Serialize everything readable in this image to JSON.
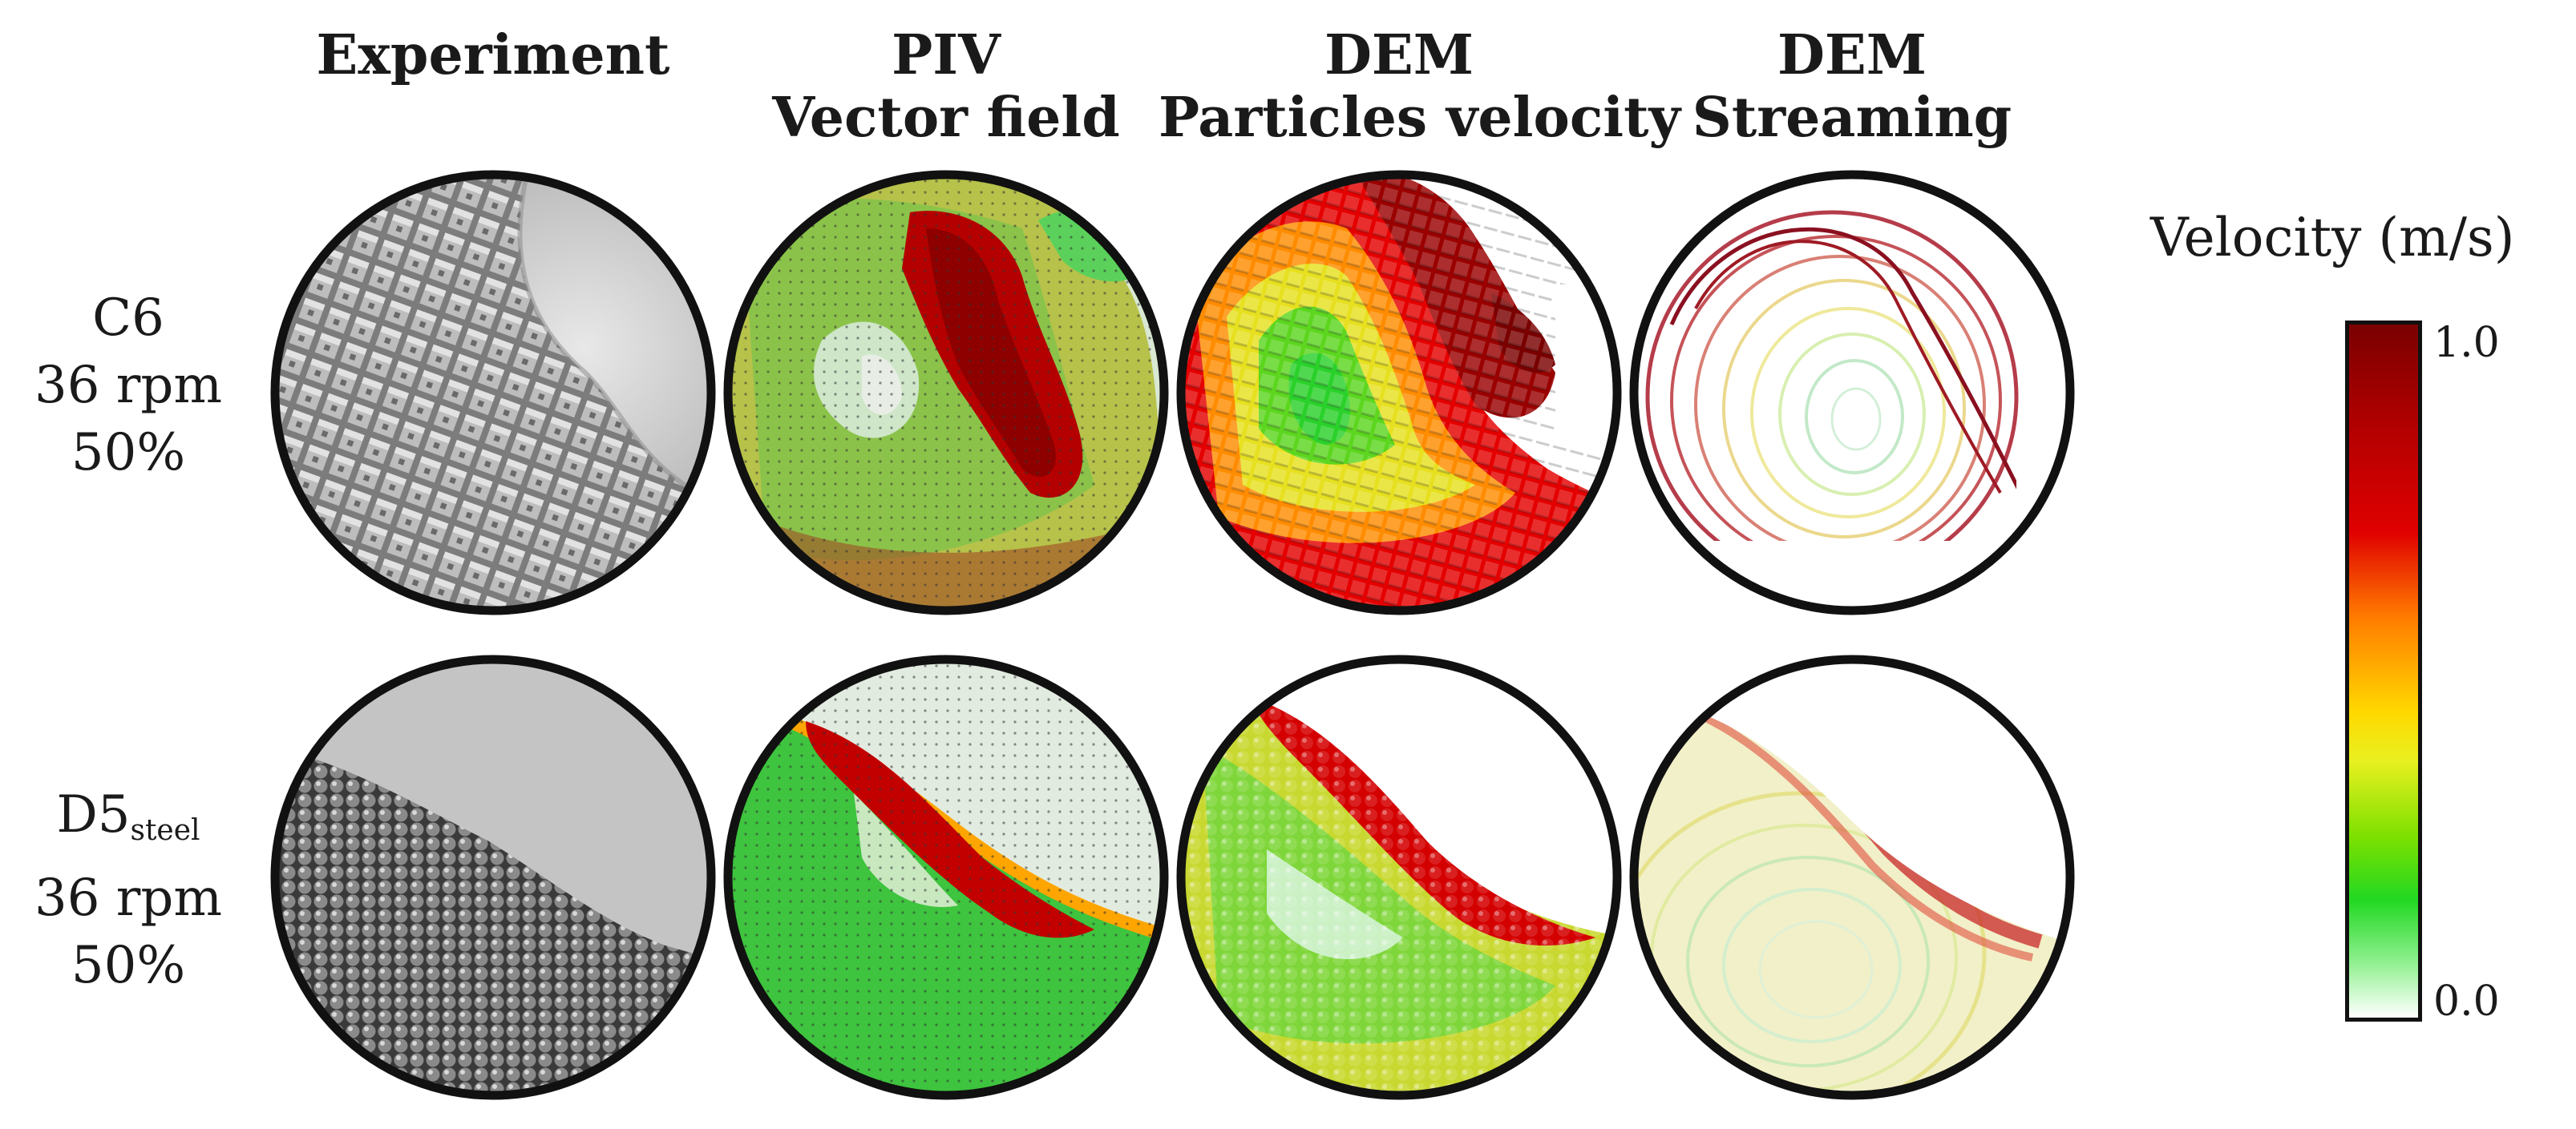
{
  "columns": [
    {
      "line1": "Experiment",
      "line2": ""
    },
    {
      "line1": "PIV",
      "line2": "Vector field"
    },
    {
      "line1": "DEM",
      "line2": "Particles velocity"
    },
    {
      "line1": "DEM",
      "line2": "Streaming"
    }
  ],
  "rows": [
    {
      "label1": "C6",
      "label1_sub": "",
      "label2": "36 rpm",
      "label3": "50%"
    },
    {
      "label1": "D5",
      "label1_sub": "steel",
      "label2": "36 rpm",
      "label3": "50%"
    }
  ],
  "legend": {
    "title": "Velocity (m/s)",
    "max_label": "1.0",
    "min_label": "0.0",
    "colors": [
      "#7a0000",
      "#e00000",
      "#ff7a00",
      "#ffd900",
      "#7ce000",
      "#22d822",
      "#ffffff"
    ]
  }
}
